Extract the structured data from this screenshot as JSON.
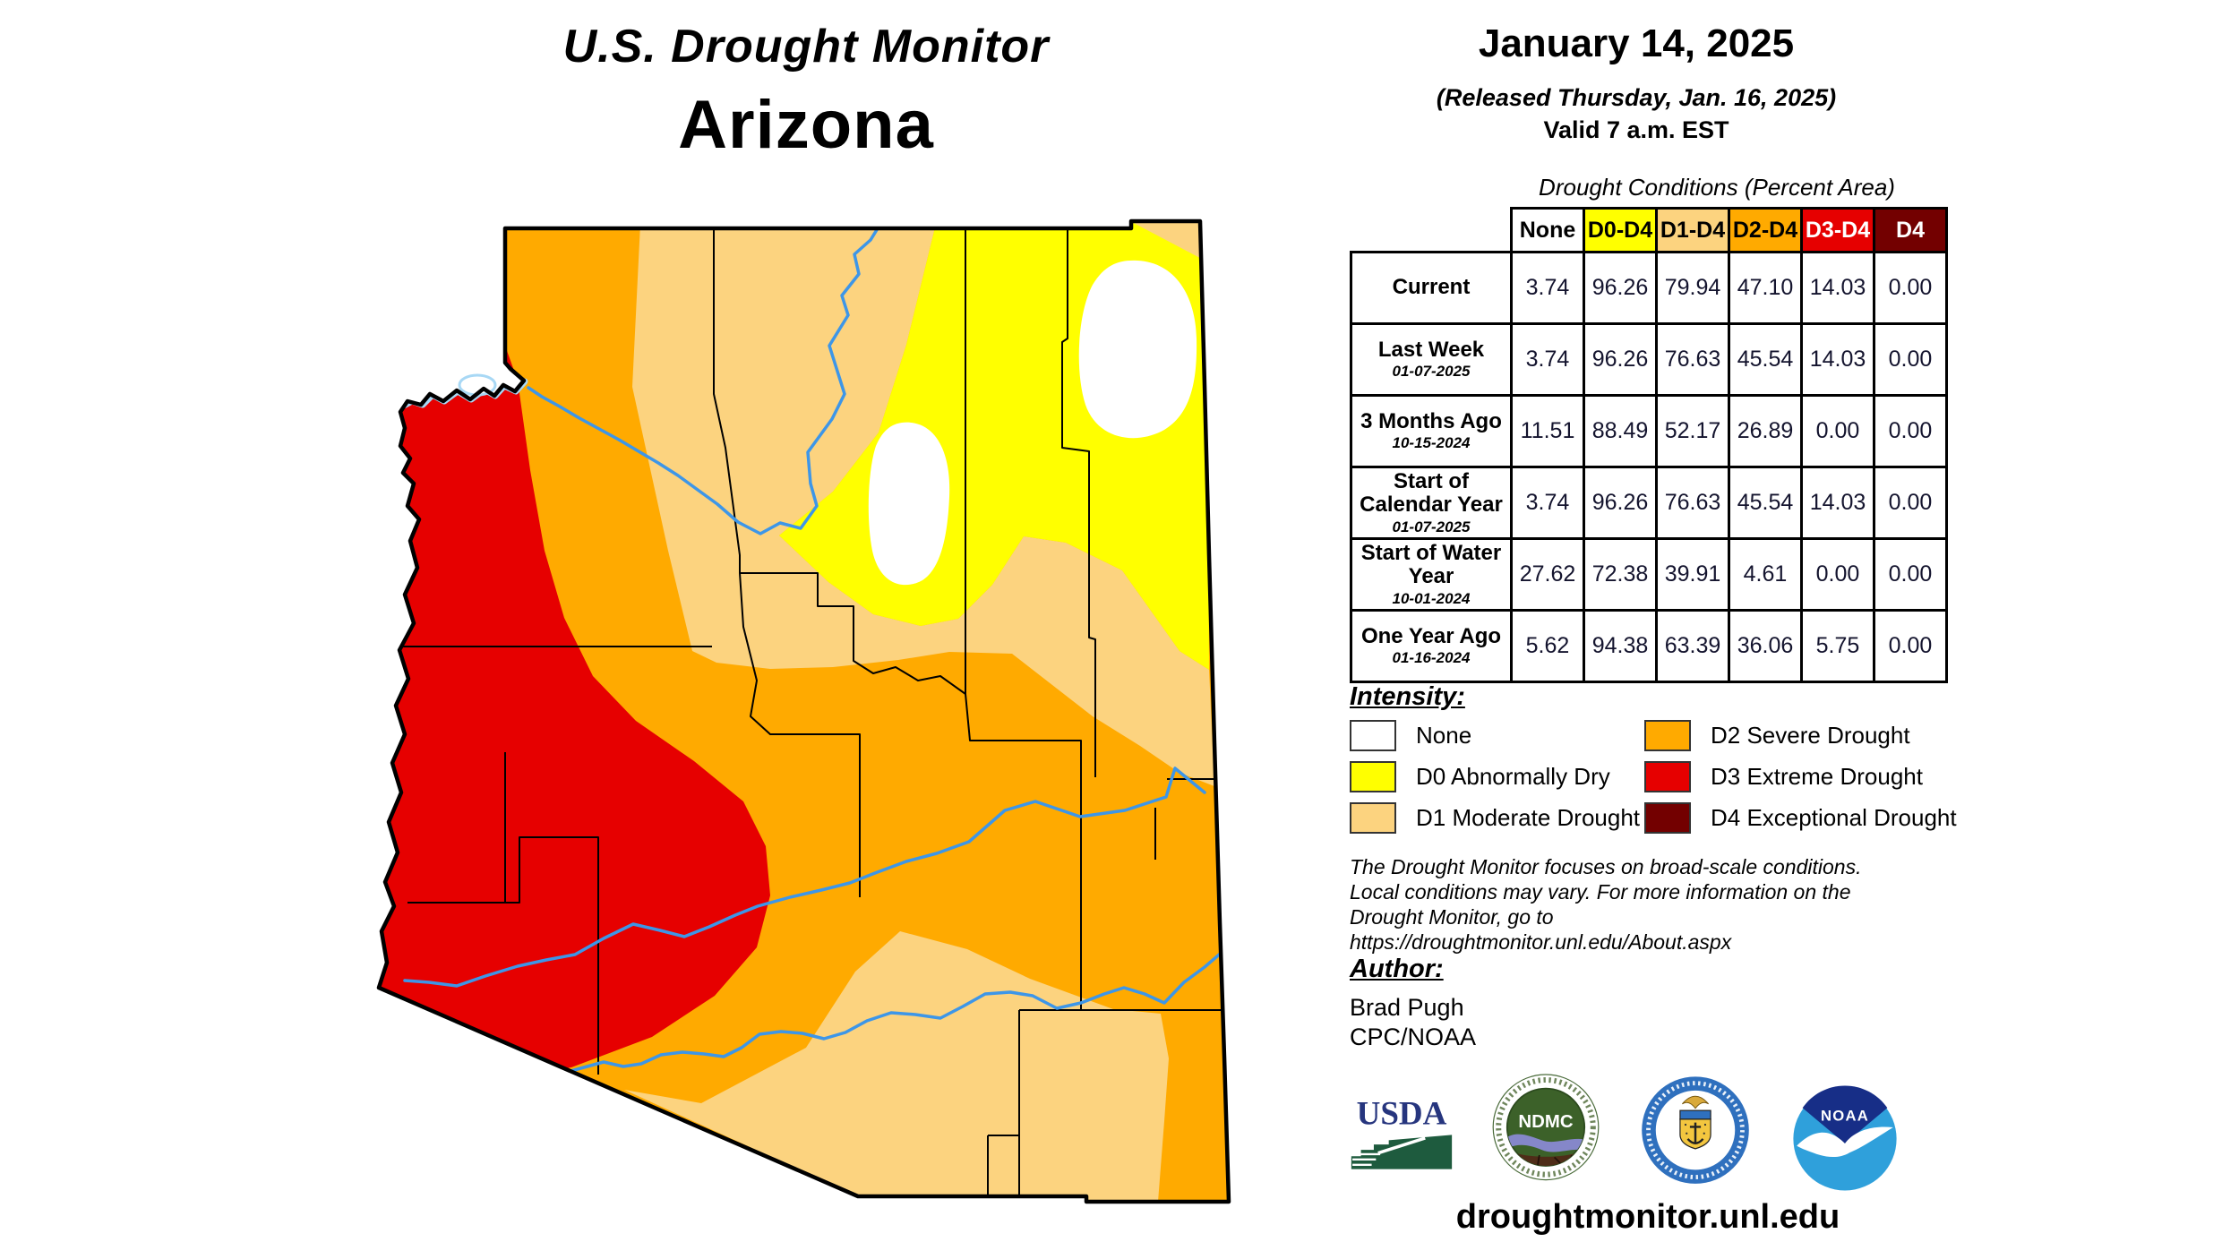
{
  "header": {
    "line1": "U.S. Drought Monitor",
    "line2": "Arizona"
  },
  "date_block": {
    "date": "January 14, 2025",
    "released": "(Released Thursday, Jan. 16, 2025)",
    "valid": "Valid 7 a.m. EST"
  },
  "conditions_table": {
    "title": "Drought Conditions (Percent Area)",
    "columns": [
      {
        "label": "None",
        "bg": "#FFFFFF",
        "fg": "#000000"
      },
      {
        "label": "D0-D4",
        "bg": "#FFFF00",
        "fg": "#000000"
      },
      {
        "label": "D1-D4",
        "bg": "#FCD37F",
        "fg": "#000000"
      },
      {
        "label": "D2-D4",
        "bg": "#FFAA00",
        "fg": "#000000"
      },
      {
        "label": "D3-D4",
        "bg": "#E60000",
        "fg": "#FFFFFF"
      },
      {
        "label": "D4",
        "bg": "#730000",
        "fg": "#FFFFFF"
      }
    ],
    "rows": [
      {
        "label": "Current",
        "date": "",
        "values": [
          "3.74",
          "96.26",
          "79.94",
          "47.10",
          "14.03",
          "0.00"
        ]
      },
      {
        "label": "Last Week",
        "date": "01-07-2025",
        "values": [
          "3.74",
          "96.26",
          "76.63",
          "45.54",
          "14.03",
          "0.00"
        ]
      },
      {
        "label": "3 Months Ago",
        "date": "10-15-2024",
        "values": [
          "11.51",
          "88.49",
          "52.17",
          "26.89",
          "0.00",
          "0.00"
        ]
      },
      {
        "label": "Start of Calendar Year",
        "date": "01-07-2025",
        "values": [
          "3.74",
          "96.26",
          "76.63",
          "45.54",
          "14.03",
          "0.00"
        ]
      },
      {
        "label": "Start of Water Year",
        "date": "10-01-2024",
        "values": [
          "27.62",
          "72.38",
          "39.91",
          "4.61",
          "0.00",
          "0.00"
        ]
      },
      {
        "label": "One Year Ago",
        "date": "01-16-2024",
        "values": [
          "5.62",
          "94.38",
          "63.39",
          "36.06",
          "5.75",
          "0.00"
        ]
      }
    ]
  },
  "intensity": {
    "heading": "Intensity:",
    "items": [
      {
        "label": "None",
        "color": "#FFFFFF"
      },
      {
        "label": "D0 Abnormally Dry",
        "color": "#FFFF00"
      },
      {
        "label": "D1 Moderate Drought",
        "color": "#FCD37F"
      },
      {
        "label": "D2 Severe Drought",
        "color": "#FFAA00"
      },
      {
        "label": "D3 Extreme Drought",
        "color": "#E60000"
      },
      {
        "label": "D4 Exceptional Drought",
        "color": "#730000"
      }
    ]
  },
  "disclaimer": {
    "lines": [
      "The Drought Monitor focuses on broad-scale conditions.",
      "Local conditions may vary. For more information on the",
      "Drought Monitor, go to https://droughtmonitor.unl.edu/About.aspx"
    ]
  },
  "author": {
    "heading": "Author:",
    "name": "Brad Pugh",
    "org": "CPC/NOAA"
  },
  "footer": {
    "url": "droughtmonitor.unl.edu"
  },
  "logos": [
    {
      "id": "usda",
      "text": "USDA",
      "name": "USDA"
    },
    {
      "id": "ndmc",
      "text": "NDMC",
      "name": "National Drought Mitigation Center"
    },
    {
      "id": "doc",
      "text": "",
      "name": "U.S. Department of Commerce"
    },
    {
      "id": "noaa",
      "text": "NOAA",
      "name": "NOAA"
    }
  ],
  "map": {
    "state": "Arizona",
    "colors": {
      "none": "#FFFFFF",
      "d0": "#FFFF00",
      "d1": "#FCD37F",
      "d2": "#FFAA00",
      "d3": "#E60000",
      "d4": "#730000",
      "river": "#3D96E8",
      "lake": "#A8D8F5",
      "border": "#000000"
    }
  }
}
